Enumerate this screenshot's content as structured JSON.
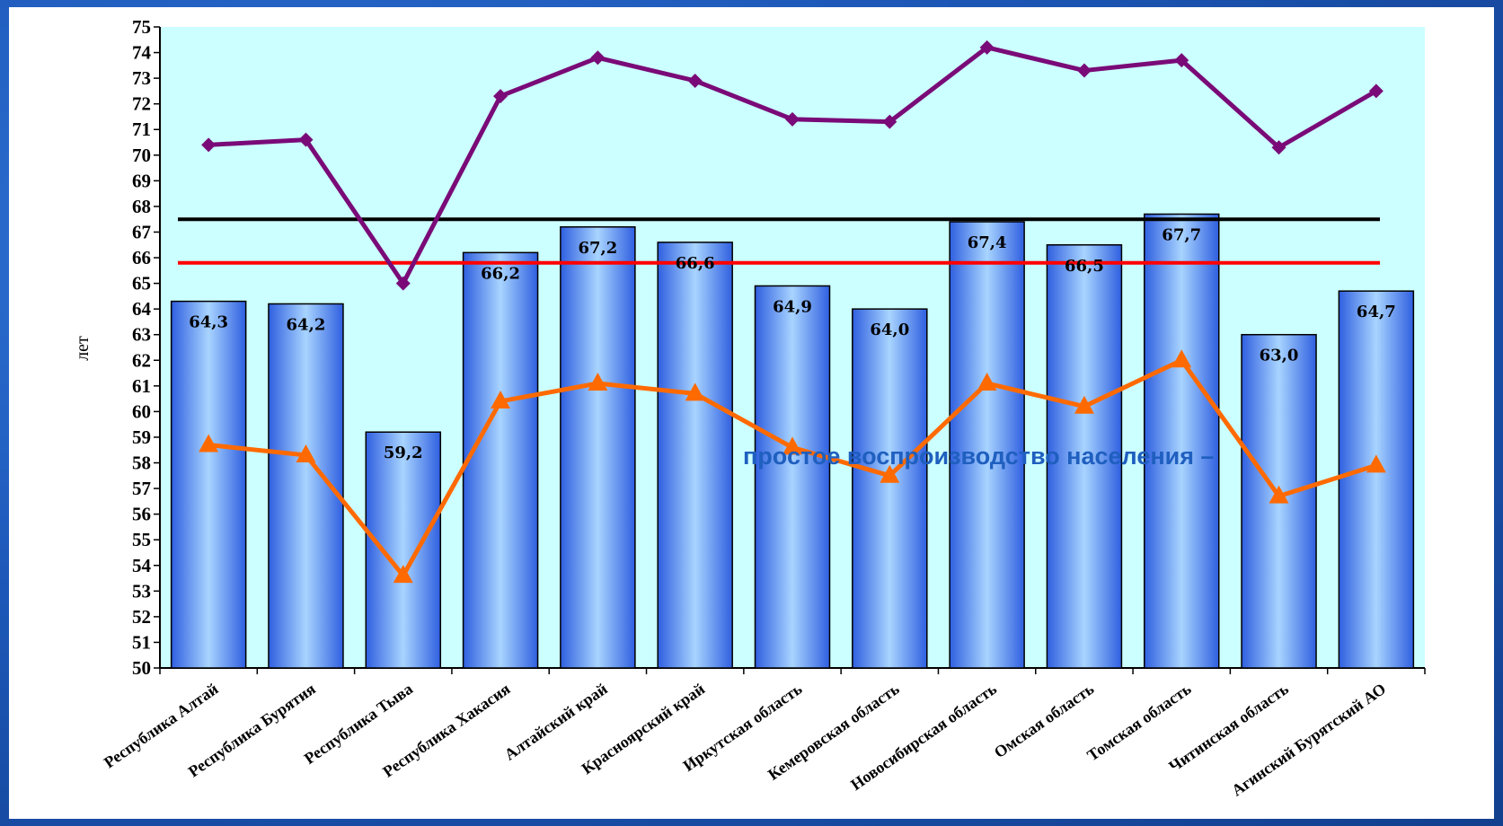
{
  "colors": {
    "background": "#1d58b8",
    "plot_area": "#ccffff",
    "bar_fill_center": "#9fd0ff",
    "bar_fill_edge": "#2f5fe0",
    "upper_line": "#7a0a78",
    "lower_line": "#ff6a00",
    "black_ref": "#000000",
    "red_ref": "#ff0000",
    "annotation": "#1f5fbf"
  },
  "annotation": "простое воспроизводство населения –",
  "chart_data": {
    "type": "bar",
    "title": "",
    "xlabel": "",
    "ylabel": "лет",
    "ylim": [
      50,
      75
    ],
    "yticks": [
      50,
      51,
      52,
      53,
      54,
      55,
      56,
      57,
      58,
      59,
      60,
      61,
      62,
      63,
      64,
      65,
      66,
      67,
      68,
      69,
      70,
      71,
      72,
      73,
      74,
      75
    ],
    "categories": [
      "Республика Алтай",
      "Республика Бурятия",
      "Республика Тыва",
      "Республика Хакасия",
      "Алтайский край",
      "Красноярский край",
      "Иркутская область",
      "Кемеровская область",
      "Новосибирская область",
      "Омская область",
      "Томская область",
      "Читинская область",
      "Агинский Бурятский АО"
    ],
    "bars": {
      "values": [
        64.3,
        64.2,
        59.2,
        66.2,
        67.2,
        66.6,
        64.9,
        64.0,
        67.4,
        66.5,
        67.7,
        63.0,
        64.7
      ],
      "labels": [
        "64,3",
        "64,2",
        "59,2",
        "66,2",
        "67,2",
        "66,6",
        "64,9",
        "64,0",
        "67,4",
        "66,5",
        "67,7",
        "63,0",
        "64,7"
      ]
    },
    "lines": [
      {
        "marker": "diamond",
        "values": [
          70.4,
          70.6,
          65.0,
          72.3,
          73.8,
          72.9,
          71.4,
          71.3,
          74.2,
          73.3,
          73.7,
          70.3,
          72.5
        ]
      },
      {
        "marker": "triangle",
        "values": [
          58.7,
          58.3,
          53.6,
          60.4,
          61.1,
          60.7,
          58.6,
          57.5,
          61.1,
          60.2,
          62.0,
          56.7,
          57.9
        ]
      }
    ],
    "reference_lines": [
      {
        "value": 67.5,
        "color": "#000000"
      },
      {
        "value": 65.8,
        "color": "#ff0000"
      }
    ]
  }
}
